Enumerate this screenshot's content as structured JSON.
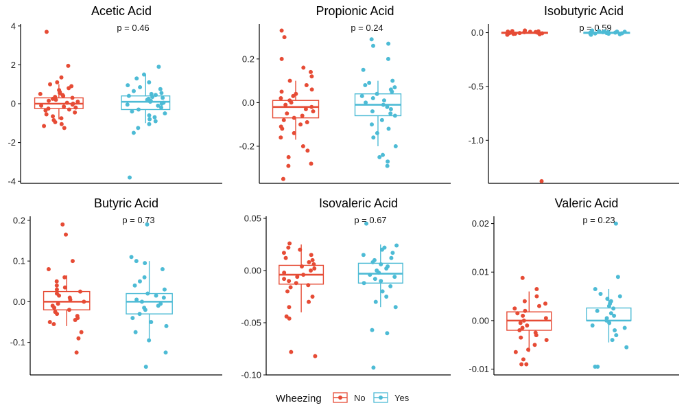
{
  "colors": {
    "no": "#E64B35",
    "yes": "#4DBBD5",
    "axis": "#000000"
  },
  "legend": {
    "title": "Wheezing",
    "labels": [
      "No",
      "Yes"
    ]
  },
  "chart_data": [
    {
      "type": "boxplot",
      "title": "Acetic Acid",
      "p_label": "p = 0.46",
      "ylim": [
        -4.1,
        4.1
      ],
      "yticks": [
        "4",
        "2",
        "0",
        "-2",
        "-4"
      ],
      "ytick_values": [
        4,
        2,
        0,
        -2,
        -4
      ],
      "categories": [
        "No",
        "Yes"
      ],
      "boxes": [
        {
          "group": "No",
          "q1": -0.25,
          "median": 0.0,
          "q3": 0.3,
          "whisker_low": -0.8,
          "whisker_high": 1.0,
          "points": [
            3.7,
            1.95,
            1.35,
            1.1,
            1.0,
            0.9,
            0.8,
            0.7,
            0.6,
            0.55,
            0.5,
            0.45,
            0.4,
            0.35,
            0.3,
            0.25,
            0.2,
            0.15,
            0.1,
            0.05,
            0.0,
            -0.05,
            -0.1,
            -0.15,
            -0.2,
            -0.25,
            -0.3,
            -0.35,
            -0.45,
            -0.55,
            -0.65,
            -0.75,
            -0.85,
            -0.95,
            -1.05,
            -1.15,
            -1.25
          ]
        },
        {
          "group": "Yes",
          "q1": -0.3,
          "median": 0.1,
          "q3": 0.4,
          "whisker_low": -1.0,
          "whisker_high": 1.5,
          "points": [
            1.9,
            1.5,
            1.3,
            1.1,
            0.95,
            0.85,
            0.75,
            0.65,
            0.55,
            0.5,
            0.45,
            0.4,
            0.35,
            0.3,
            0.25,
            0.2,
            0.15,
            0.1,
            0.05,
            0.0,
            -0.05,
            -0.1,
            -0.2,
            -0.3,
            -0.4,
            -0.5,
            -0.6,
            -0.7,
            -0.8,
            -0.9,
            -1.05,
            -1.25,
            -1.5,
            -3.8
          ]
        }
      ]
    },
    {
      "type": "boxplot",
      "title": "Propionic Acid",
      "p_label": "p = 0.24",
      "ylim": [
        -0.37,
        0.36
      ],
      "yticks": [
        "0.2",
        "0.0",
        "-0.2"
      ],
      "ytick_values": [
        0.2,
        0.0,
        -0.2
      ],
      "categories": [
        "No",
        "Yes"
      ],
      "boxes": [
        {
          "group": "No",
          "q1": -0.07,
          "median": -0.02,
          "q3": 0.01,
          "whisker_low": -0.17,
          "whisker_high": 0.1,
          "points": [
            0.33,
            0.3,
            0.2,
            0.16,
            0.14,
            0.12,
            0.1,
            0.08,
            0.06,
            0.05,
            0.04,
            0.03,
            0.02,
            0.01,
            0.0,
            -0.01,
            -0.02,
            -0.03,
            -0.04,
            -0.05,
            -0.06,
            -0.07,
            -0.08,
            -0.09,
            -0.1,
            -0.11,
            -0.12,
            -0.14,
            -0.16,
            -0.2,
            -0.22,
            -0.25,
            -0.28,
            -0.29,
            -0.35
          ]
        },
        {
          "group": "Yes",
          "q1": -0.06,
          "median": -0.01,
          "q3": 0.04,
          "whisker_low": -0.2,
          "whisker_high": 0.1,
          "points": [
            0.29,
            0.27,
            0.26,
            0.2,
            0.15,
            0.1,
            0.09,
            0.08,
            0.07,
            0.06,
            0.05,
            0.04,
            0.03,
            0.02,
            0.01,
            0.0,
            -0.01,
            -0.02,
            -0.03,
            -0.04,
            -0.05,
            -0.06,
            -0.08,
            -0.1,
            -0.12,
            -0.14,
            -0.16,
            -0.2,
            -0.24,
            -0.25,
            -0.27,
            -0.29
          ]
        }
      ]
    },
    {
      "type": "boxplot",
      "title": "Isobutyric Acid",
      "p_label": "p = 0.59",
      "ylim": [
        -1.4,
        0.08
      ],
      "yticks": [
        "0.0",
        "-0.5",
        "-1.0"
      ],
      "ytick_values": [
        0.0,
        -0.5,
        -1.0
      ],
      "categories": [
        "No",
        "Yes"
      ],
      "boxes": [
        {
          "group": "No",
          "q1": -0.003,
          "median": 0.0,
          "q3": 0.003,
          "whisker_low": -0.01,
          "whisker_high": 0.01,
          "points": [
            0.02,
            0.015,
            0.012,
            0.01,
            0.008,
            0.006,
            0.004,
            0.002,
            0.0,
            -0.002,
            -0.004,
            -0.006,
            -0.008,
            -0.01,
            -0.012,
            -0.015,
            -0.02,
            -1.38
          ]
        },
        {
          "group": "Yes",
          "q1": -0.003,
          "median": 0.0,
          "q3": 0.003,
          "whisker_low": -0.01,
          "whisker_high": 0.01,
          "points": [
            0.02,
            0.015,
            0.012,
            0.01,
            0.008,
            0.006,
            0.004,
            0.002,
            0.0,
            -0.002,
            -0.004,
            -0.006,
            -0.008,
            -0.01,
            -0.012,
            -0.015,
            -0.02
          ]
        }
      ]
    },
    {
      "type": "boxplot",
      "title": "Butyric Acid",
      "p_label": "p = 0.73",
      "ylim": [
        -0.18,
        0.21
      ],
      "yticks": [
        "0.2",
        "0.1",
        "0.0",
        "-0.1"
      ],
      "ytick_values": [
        0.2,
        0.1,
        0.0,
        -0.1
      ],
      "categories": [
        "No",
        "Yes"
      ],
      "boxes": [
        {
          "group": "No",
          "q1": -0.02,
          "median": 0.0,
          "q3": 0.025,
          "whisker_low": -0.06,
          "whisker_high": 0.065,
          "points": [
            0.19,
            0.165,
            0.1,
            0.08,
            0.06,
            0.05,
            0.04,
            0.035,
            0.03,
            0.025,
            0.02,
            0.015,
            0.01,
            0.005,
            0.0,
            -0.005,
            -0.01,
            -0.015,
            -0.02,
            -0.025,
            -0.03,
            -0.035,
            -0.04,
            -0.045,
            -0.05,
            -0.055,
            -0.075,
            -0.09,
            -0.125
          ]
        },
        {
          "group": "Yes",
          "q1": -0.03,
          "median": 0.0,
          "q3": 0.02,
          "whisker_low": -0.095,
          "whisker_high": 0.1,
          "points": [
            0.19,
            0.11,
            0.1,
            0.095,
            0.08,
            0.06,
            0.05,
            0.04,
            0.03,
            0.02,
            0.015,
            0.01,
            0.005,
            0.0,
            -0.005,
            -0.01,
            -0.015,
            -0.02,
            -0.03,
            -0.04,
            -0.05,
            -0.06,
            -0.075,
            -0.095,
            -0.125,
            -0.16
          ]
        }
      ]
    },
    {
      "type": "boxplot",
      "title": "Isovaleric Acid",
      "p_label": "p = 0.67",
      "ylim": [
        -0.1,
        0.052
      ],
      "yticks": [
        "0.05",
        "0.00",
        "-0.05",
        "-0.10"
      ],
      "ytick_values": [
        0.05,
        0.0,
        -0.05,
        -0.1
      ],
      "categories": [
        "No",
        "Yes"
      ],
      "boxes": [
        {
          "group": "No",
          "q1": -0.013,
          "median": -0.004,
          "q3": 0.005,
          "whisker_low": -0.04,
          "whisker_high": 0.025,
          "points": [
            0.026,
            0.022,
            0.02,
            0.017,
            0.015,
            0.012,
            0.01,
            0.008,
            0.006,
            0.004,
            0.002,
            0.0,
            -0.002,
            -0.004,
            -0.006,
            -0.008,
            -0.01,
            -0.012,
            -0.014,
            -0.016,
            -0.02,
            -0.025,
            -0.03,
            -0.035,
            -0.044,
            -0.046,
            -0.078,
            -0.082
          ]
        },
        {
          "group": "Yes",
          "q1": -0.012,
          "median": -0.003,
          "q3": 0.007,
          "whisker_low": -0.035,
          "whisker_high": 0.025,
          "points": [
            0.045,
            0.024,
            0.022,
            0.02,
            0.017,
            0.015,
            0.012,
            0.01,
            0.008,
            0.006,
            0.004,
            0.002,
            0.0,
            -0.002,
            -0.004,
            -0.006,
            -0.008,
            -0.01,
            -0.012,
            -0.015,
            -0.02,
            -0.025,
            -0.03,
            -0.035,
            -0.057,
            -0.06,
            -0.093
          ]
        }
      ]
    },
    {
      "type": "boxplot",
      "title": "Valeric Acid",
      "p_label": "p = 0.23",
      "ylim": [
        -0.0112,
        0.0215
      ],
      "yticks": [
        "0.02",
        "0.01",
        "0.00",
        "-0.01"
      ],
      "ytick_values": [
        0.02,
        0.01,
        0.0,
        -0.01
      ],
      "categories": [
        "No",
        "Yes"
      ],
      "boxes": [
        {
          "group": "No",
          "q1": -0.002,
          "median": 0.0,
          "q3": 0.0018,
          "whisker_low": -0.0065,
          "whisker_high": 0.006,
          "points": [
            0.0088,
            0.0065,
            0.005,
            0.004,
            0.0035,
            0.003,
            0.0025,
            0.002,
            0.0015,
            0.001,
            0.0005,
            0.0,
            -0.0005,
            -0.001,
            -0.0015,
            -0.002,
            -0.0025,
            -0.003,
            -0.0035,
            -0.004,
            -0.005,
            -0.006,
            -0.0065,
            -0.008,
            -0.009,
            -0.009
          ]
        },
        {
          "group": "Yes",
          "q1": 0.0,
          "median": 0.0,
          "q3": 0.0026,
          "whisker_low": -0.0045,
          "whisker_high": 0.0065,
          "points": [
            0.02,
            0.009,
            0.0065,
            0.0055,
            0.005,
            0.0045,
            0.004,
            0.0035,
            0.003,
            0.0025,
            0.002,
            0.0015,
            0.001,
            0.0005,
            0.0,
            -0.0005,
            -0.001,
            -0.0015,
            -0.002,
            -0.003,
            -0.004,
            -0.0055,
            -0.0095,
            -0.0095
          ]
        }
      ]
    }
  ]
}
